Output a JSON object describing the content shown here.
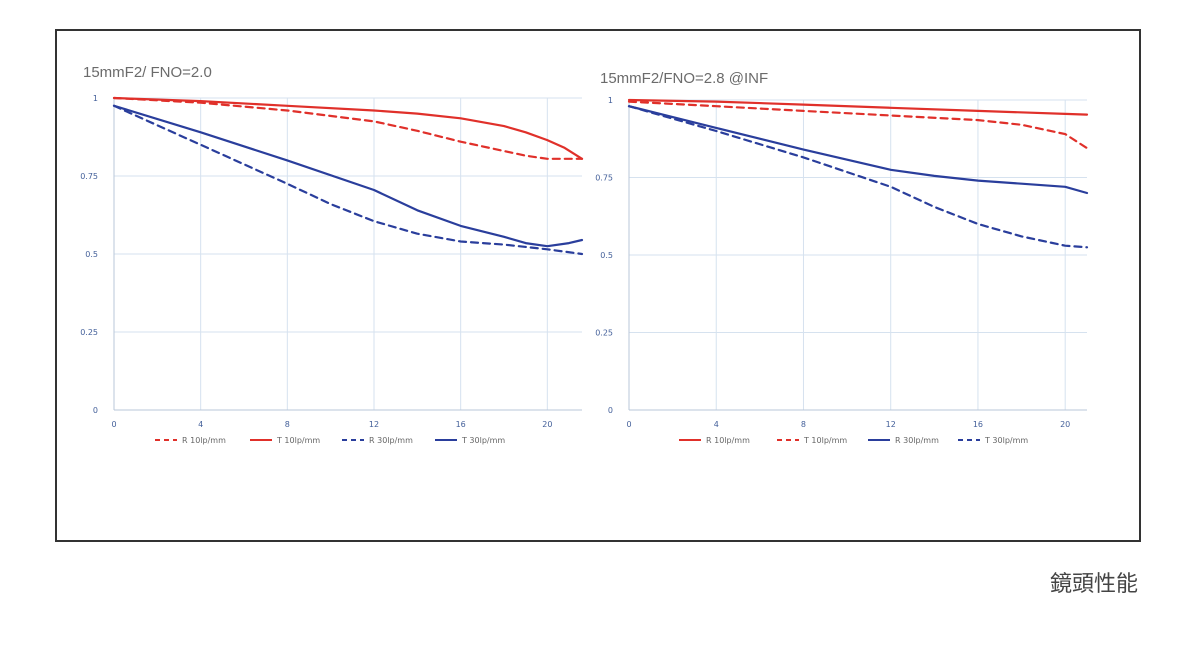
{
  "caption": "鏡頭性能",
  "colors": {
    "red": "#e0302a",
    "blue": "#2a3e9c",
    "grid": "#d6e2ef",
    "tick": "#44609a"
  },
  "chart_data": [
    {
      "type": "line",
      "title": "15mmF2/ FNO=2.0",
      "xlim": [
        0,
        21.6
      ],
      "ylim": [
        0,
        1
      ],
      "xticks": [
        "0",
        "4",
        "8",
        "12",
        "16",
        "20"
      ],
      "yticks": [
        "0",
        "0.25",
        "0.5",
        "0.75",
        "1"
      ],
      "grid": true,
      "legend_position": "bottom",
      "series": [
        {
          "name": "R 10lp/mm",
          "color": "red",
          "dash": true,
          "x": [
            0,
            4,
            8,
            12,
            14,
            16,
            18,
            19,
            20,
            21.6
          ],
          "y": [
            1.0,
            0.985,
            0.96,
            0.925,
            0.895,
            0.86,
            0.83,
            0.815,
            0.805,
            0.805
          ]
        },
        {
          "name": "T 10lp/mm",
          "color": "red",
          "dash": false,
          "x": [
            0,
            4,
            8,
            12,
            14,
            16,
            18,
            19,
            20,
            20.8,
            21.6
          ],
          "y": [
            1.0,
            0.99,
            0.975,
            0.96,
            0.95,
            0.935,
            0.91,
            0.89,
            0.865,
            0.84,
            0.805
          ]
        },
        {
          "name": "R 30lp/mm",
          "color": "blue",
          "dash": true,
          "x": [
            0,
            4,
            8,
            10,
            12,
            14,
            16,
            18,
            20,
            21.6
          ],
          "y": [
            0.975,
            0.85,
            0.725,
            0.66,
            0.605,
            0.565,
            0.54,
            0.53,
            0.515,
            0.5
          ]
        },
        {
          "name": "T 30lp/mm",
          "color": "blue",
          "dash": false,
          "x": [
            0,
            4,
            8,
            12,
            14,
            16,
            18,
            19,
            20,
            21,
            21.6
          ],
          "y": [
            0.975,
            0.89,
            0.8,
            0.705,
            0.64,
            0.59,
            0.555,
            0.535,
            0.525,
            0.535,
            0.545
          ]
        }
      ]
    },
    {
      "type": "line",
      "title": "15mmF2/FNO=2.8   @INF",
      "xlim": [
        0,
        21
      ],
      "ylim": [
        0,
        1
      ],
      "xticks": [
        "0",
        "4",
        "8",
        "12",
        "16",
        "20"
      ],
      "yticks": [
        "0",
        "0.25",
        "0.5",
        "0.75",
        "1"
      ],
      "grid": true,
      "legend_position": "bottom",
      "series": [
        {
          "name": "R 10lp/mm",
          "color": "red",
          "dash": false,
          "x": [
            0,
            4,
            8,
            12,
            16,
            20,
            21
          ],
          "y": [
            1.0,
            0.995,
            0.985,
            0.975,
            0.965,
            0.955,
            0.953
          ]
        },
        {
          "name": "T 10lp/mm",
          "color": "red",
          "dash": true,
          "x": [
            0,
            4,
            8,
            12,
            16,
            18,
            20,
            21
          ],
          "y": [
            0.995,
            0.98,
            0.965,
            0.95,
            0.935,
            0.92,
            0.89,
            0.845
          ]
        },
        {
          "name": "R 30lp/mm",
          "color": "blue",
          "dash": false,
          "x": [
            0,
            4,
            8,
            12,
            14,
            16,
            18,
            20,
            21
          ],
          "y": [
            0.98,
            0.91,
            0.84,
            0.775,
            0.755,
            0.74,
            0.73,
            0.72,
            0.7
          ]
        },
        {
          "name": "T 30lp/mm",
          "color": "blue",
          "dash": true,
          "x": [
            0,
            4,
            8,
            12,
            14,
            16,
            18,
            20,
            21
          ],
          "y": [
            0.98,
            0.9,
            0.815,
            0.72,
            0.655,
            0.6,
            0.56,
            0.53,
            0.525
          ]
        }
      ]
    }
  ]
}
